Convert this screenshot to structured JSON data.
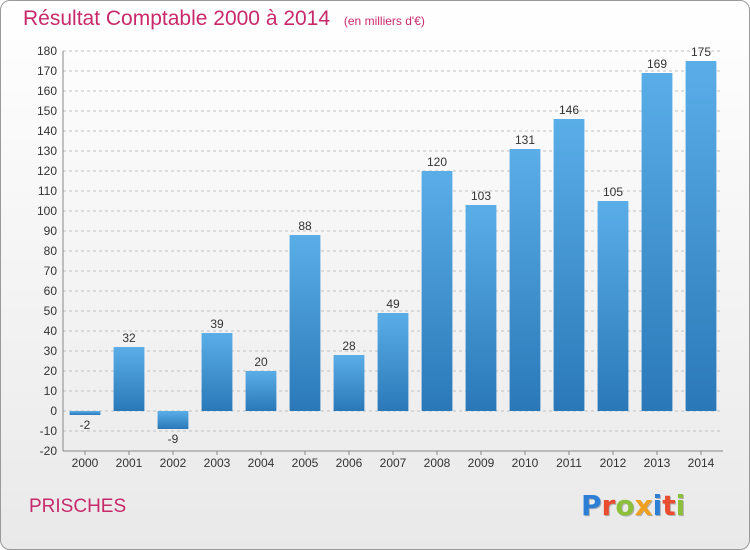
{
  "header": {
    "title": "Résultat Comptable 2000 à 2014",
    "unit_note": "(en milliers d'€)"
  },
  "footer": {
    "place": "PRISCHES",
    "logo": {
      "text": "Proxiti",
      "letter_colors": [
        "#2d7fd6",
        "#e94c2f",
        "#8cbf3a",
        "#f0a020",
        "#2d7fd6",
        "#e94c2f",
        "#8cbf3a"
      ]
    }
  },
  "colors": {
    "title": "#c8296b",
    "bar_top": "#5aaee8",
    "bar_bottom": "#2a78b8",
    "grid": "#c0c0c0"
  },
  "chart_data": {
    "type": "bar",
    "title": "Résultat Comptable 2000 à 2014",
    "categories": [
      "2000",
      "2001",
      "2002",
      "2003",
      "2004",
      "2005",
      "2006",
      "2007",
      "2008",
      "2009",
      "2010",
      "2011",
      "2012",
      "2013",
      "2014"
    ],
    "values": [
      -2,
      32,
      -9,
      39,
      20,
      88,
      28,
      49,
      120,
      103,
      131,
      146,
      105,
      169,
      175
    ],
    "ylim": [
      -20,
      180
    ],
    "yticks": [
      -20,
      -10,
      0,
      10,
      20,
      30,
      40,
      50,
      60,
      70,
      80,
      90,
      100,
      110,
      120,
      130,
      140,
      150,
      160,
      170,
      180
    ],
    "grid": "horizontal dashed"
  }
}
